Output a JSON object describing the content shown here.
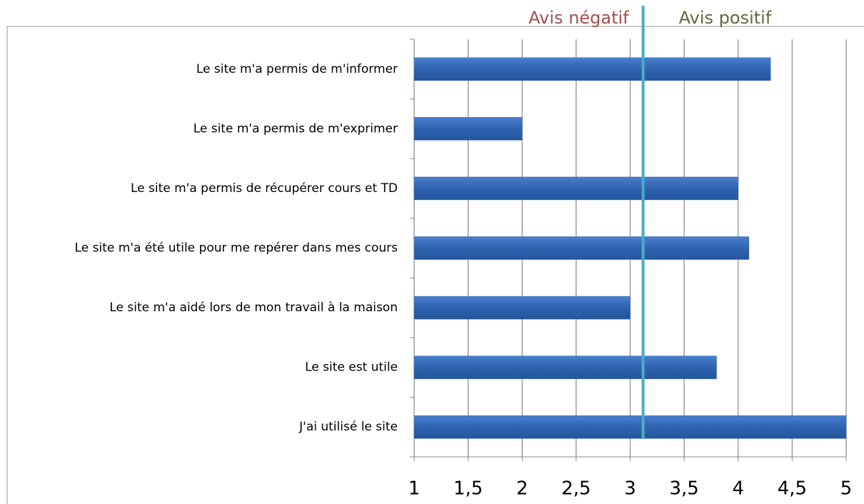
{
  "chart_data": {
    "type": "hbar",
    "annotations": [
      {
        "text": "Avis négatif",
        "color": "#a0504f"
      },
      {
        "text": "Avis positif",
        "color": "#5f6b3b"
      }
    ],
    "reference_line": {
      "value": 3.12,
      "color": "#4bacc6"
    },
    "categories": [
      "Le site m'a permis de m'informer",
      "Le site m'a permis de m'exprimer",
      "Le site m'a permis de récupérer cours et TD",
      "Le site m'a été utile pour me repérer dans mes cours",
      "Le site m'a aidé lors de mon travail à la maison",
      "Le site est utile",
      "J'ai utilisé le site"
    ],
    "values": [
      4.3,
      2,
      4,
      4.1,
      3,
      3.8,
      5
    ],
    "color": "#3065b0",
    "xlim": [
      1,
      5
    ],
    "xticks": [
      1,
      {
        "value": 1.5,
        "label": "1,5"
      },
      2,
      {
        "value": 2.5,
        "label": "2,5"
      },
      3,
      {
        "value": 3.5,
        "label": "3,5"
      },
      4,
      {
        "value": 4.5,
        "label": "4,5"
      },
      5
    ],
    "grid": true
  }
}
